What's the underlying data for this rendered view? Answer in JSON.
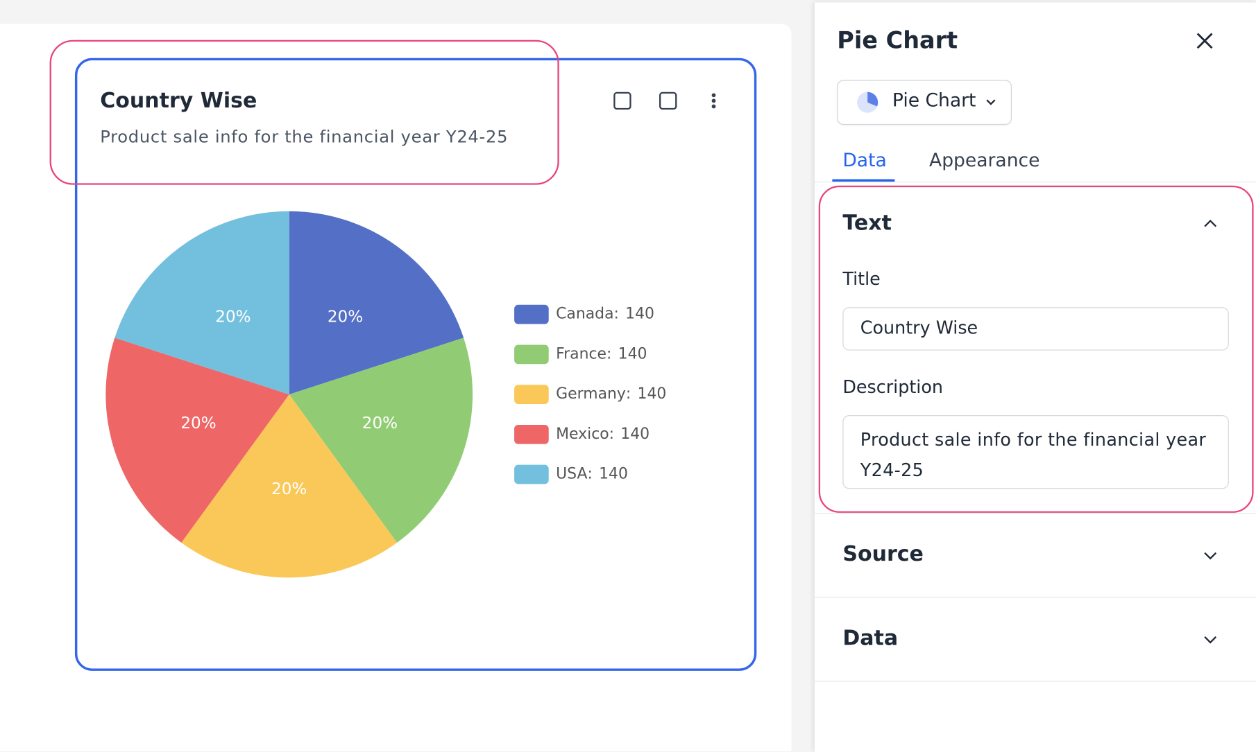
{
  "header": {
    "title": "Pie Chart",
    "chart_type": "Pie Chart"
  },
  "tabs": [
    "Data",
    "Appearance"
  ],
  "sections": {
    "text": {
      "heading": "Text",
      "fields": [
        {
          "label": "Title",
          "value": "Country Wise"
        },
        {
          "label": "Description",
          "value": "Product sale info for the financial year Y24-25"
        }
      ]
    },
    "source": {
      "heading": "Source"
    },
    "data": {
      "heading": "Data"
    }
  },
  "chart_data": {
    "type": "pie",
    "title": "Country Wise",
    "subtitle": "Product sale info for the financial year Y24-25",
    "categories": [
      "Canada",
      "France",
      "Germany",
      "Mexico",
      "USA"
    ],
    "legend_separator": ":",
    "values": [
      140,
      140,
      140,
      140,
      140
    ],
    "value_labels": [
      "20%",
      "20%",
      "20%",
      "20%",
      "20%"
    ],
    "colors": [
      "#5470c6",
      "#91cc75",
      "#fac858",
      "#ee6666",
      "#73c0de"
    ]
  }
}
